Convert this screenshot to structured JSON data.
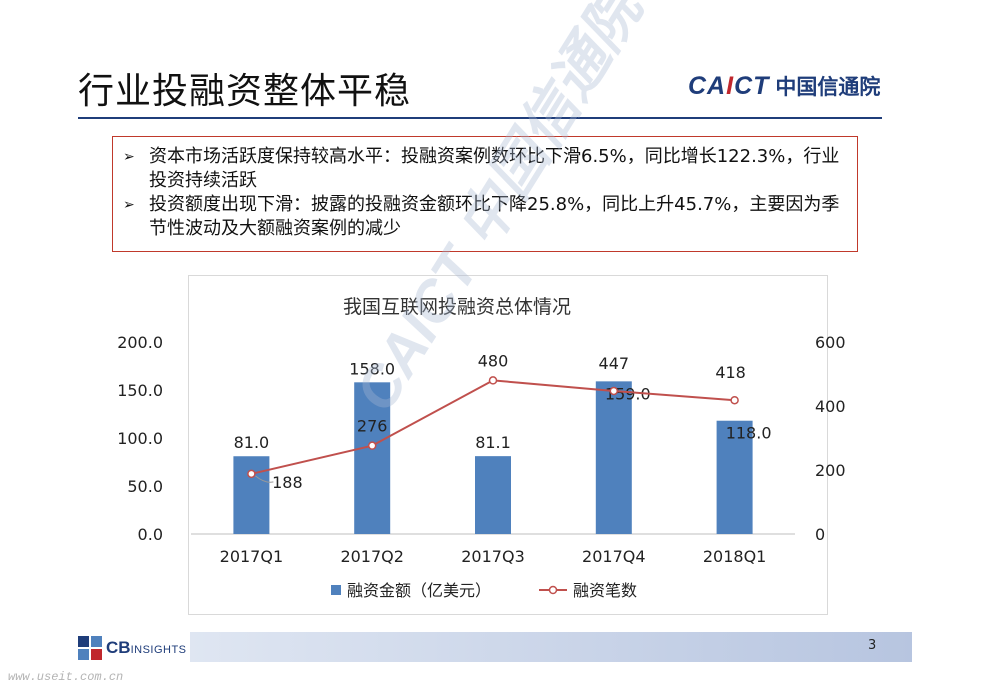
{
  "slide": {
    "title": "行业投融资整体平稳",
    "logo_en_blue": "CA",
    "logo_en_red": "I",
    "logo_en_blue2": "CT",
    "logo_cn": "中国信通院",
    "page_number": "3"
  },
  "bullets": [
    {
      "marker": "➢",
      "text": "资本市场活跃度保持较高水平：投融资案例数环比下滑6.5%，同比增长122.3%，行业投资持续活跃"
    },
    {
      "marker": "➢",
      "text": "投资额度出现下滑：披露的投融资金额环比下降25.8%，同比上升45.7%，主要因为季节性波动及大额融资案例的减少"
    }
  ],
  "footer": {
    "cb_brand": "CB",
    "cb_small": "INSIGHTS",
    "site": "www.useit.com.cn"
  },
  "watermark": "CAICT 中国信通院",
  "colors": {
    "bar": "#4f81bd",
    "line": "#c0504d",
    "brand_blue": "#1f3d7a",
    "brand_red": "#c0272d"
  },
  "chart_data": {
    "type": "bar+line",
    "title": "我国互联网投融资总体情况",
    "categories": [
      "2017Q1",
      "2017Q2",
      "2017Q3",
      "2017Q4",
      "2018Q1"
    ],
    "series": [
      {
        "name": "融资金额（亿美元）",
        "type": "bar",
        "axis": "left",
        "values": [
          81.0,
          158.0,
          81.1,
          159.0,
          118.0
        ],
        "labels": [
          "81.0",
          "158.0",
          "81.1",
          "159.0",
          "118.0"
        ]
      },
      {
        "name": "融资笔数",
        "type": "line",
        "axis": "right",
        "values": [
          188,
          276,
          480,
          447,
          418
        ],
        "labels": [
          "188",
          "276",
          "480",
          "447",
          "418"
        ]
      }
    ],
    "y_left": {
      "min": 0,
      "max": 200,
      "ticks": [
        "0.0",
        "50.0",
        "100.0",
        "150.0",
        "200.0"
      ]
    },
    "y_right": {
      "min": 0,
      "max": 600,
      "ticks": [
        "0",
        "200",
        "400",
        "600"
      ]
    },
    "grid": false,
    "legend": "bottom"
  }
}
